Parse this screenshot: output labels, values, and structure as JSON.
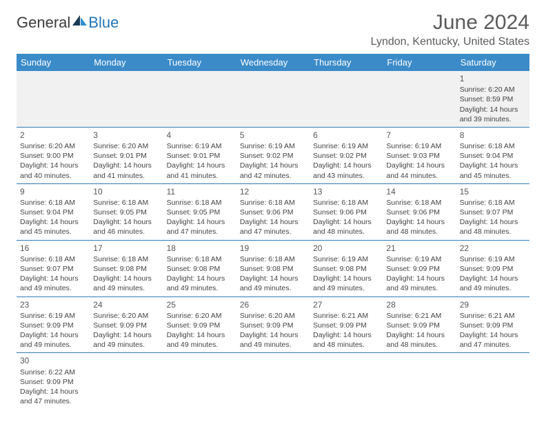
{
  "brand": {
    "part1": "General",
    "part2": "Blue"
  },
  "title": "June 2024",
  "location": "Lyndon, Kentucky, United States",
  "day_headers": [
    "Sunday",
    "Monday",
    "Tuesday",
    "Wednesday",
    "Thursday",
    "Friday",
    "Saturday"
  ],
  "colors": {
    "header_bg": "#3b8bc9",
    "header_fg": "#ffffff",
    "cell_border": "#2f7bb5",
    "empty_bg": "#f1f1f1",
    "text": "#444444",
    "title_color": "#5a5a5a",
    "logo_dark": "#3a3a3a",
    "logo_blue": "#2176b8"
  },
  "weeks": [
    [
      null,
      null,
      null,
      null,
      null,
      null,
      {
        "n": "1",
        "sr": "Sunrise: 6:20 AM",
        "ss": "Sunset: 8:59 PM",
        "d1": "Daylight: 14 hours",
        "d2": "and 39 minutes."
      }
    ],
    [
      {
        "n": "2",
        "sr": "Sunrise: 6:20 AM",
        "ss": "Sunset: 9:00 PM",
        "d1": "Daylight: 14 hours",
        "d2": "and 40 minutes."
      },
      {
        "n": "3",
        "sr": "Sunrise: 6:20 AM",
        "ss": "Sunset: 9:01 PM",
        "d1": "Daylight: 14 hours",
        "d2": "and 41 minutes."
      },
      {
        "n": "4",
        "sr": "Sunrise: 6:19 AM",
        "ss": "Sunset: 9:01 PM",
        "d1": "Daylight: 14 hours",
        "d2": "and 41 minutes."
      },
      {
        "n": "5",
        "sr": "Sunrise: 6:19 AM",
        "ss": "Sunset: 9:02 PM",
        "d1": "Daylight: 14 hours",
        "d2": "and 42 minutes."
      },
      {
        "n": "6",
        "sr": "Sunrise: 6:19 AM",
        "ss": "Sunset: 9:02 PM",
        "d1": "Daylight: 14 hours",
        "d2": "and 43 minutes."
      },
      {
        "n": "7",
        "sr": "Sunrise: 6:19 AM",
        "ss": "Sunset: 9:03 PM",
        "d1": "Daylight: 14 hours",
        "d2": "and 44 minutes."
      },
      {
        "n": "8",
        "sr": "Sunrise: 6:18 AM",
        "ss": "Sunset: 9:04 PM",
        "d1": "Daylight: 14 hours",
        "d2": "and 45 minutes."
      }
    ],
    [
      {
        "n": "9",
        "sr": "Sunrise: 6:18 AM",
        "ss": "Sunset: 9:04 PM",
        "d1": "Daylight: 14 hours",
        "d2": "and 45 minutes."
      },
      {
        "n": "10",
        "sr": "Sunrise: 6:18 AM",
        "ss": "Sunset: 9:05 PM",
        "d1": "Daylight: 14 hours",
        "d2": "and 46 minutes."
      },
      {
        "n": "11",
        "sr": "Sunrise: 6:18 AM",
        "ss": "Sunset: 9:05 PM",
        "d1": "Daylight: 14 hours",
        "d2": "and 47 minutes."
      },
      {
        "n": "12",
        "sr": "Sunrise: 6:18 AM",
        "ss": "Sunset: 9:06 PM",
        "d1": "Daylight: 14 hours",
        "d2": "and 47 minutes."
      },
      {
        "n": "13",
        "sr": "Sunrise: 6:18 AM",
        "ss": "Sunset: 9:06 PM",
        "d1": "Daylight: 14 hours",
        "d2": "and 48 minutes."
      },
      {
        "n": "14",
        "sr": "Sunrise: 6:18 AM",
        "ss": "Sunset: 9:06 PM",
        "d1": "Daylight: 14 hours",
        "d2": "and 48 minutes."
      },
      {
        "n": "15",
        "sr": "Sunrise: 6:18 AM",
        "ss": "Sunset: 9:07 PM",
        "d1": "Daylight: 14 hours",
        "d2": "and 48 minutes."
      }
    ],
    [
      {
        "n": "16",
        "sr": "Sunrise: 6:18 AM",
        "ss": "Sunset: 9:07 PM",
        "d1": "Daylight: 14 hours",
        "d2": "and 49 minutes."
      },
      {
        "n": "17",
        "sr": "Sunrise: 6:18 AM",
        "ss": "Sunset: 9:08 PM",
        "d1": "Daylight: 14 hours",
        "d2": "and 49 minutes."
      },
      {
        "n": "18",
        "sr": "Sunrise: 6:18 AM",
        "ss": "Sunset: 9:08 PM",
        "d1": "Daylight: 14 hours",
        "d2": "and 49 minutes."
      },
      {
        "n": "19",
        "sr": "Sunrise: 6:18 AM",
        "ss": "Sunset: 9:08 PM",
        "d1": "Daylight: 14 hours",
        "d2": "and 49 minutes."
      },
      {
        "n": "20",
        "sr": "Sunrise: 6:19 AM",
        "ss": "Sunset: 9:08 PM",
        "d1": "Daylight: 14 hours",
        "d2": "and 49 minutes."
      },
      {
        "n": "21",
        "sr": "Sunrise: 6:19 AM",
        "ss": "Sunset: 9:09 PM",
        "d1": "Daylight: 14 hours",
        "d2": "and 49 minutes."
      },
      {
        "n": "22",
        "sr": "Sunrise: 6:19 AM",
        "ss": "Sunset: 9:09 PM",
        "d1": "Daylight: 14 hours",
        "d2": "and 49 minutes."
      }
    ],
    [
      {
        "n": "23",
        "sr": "Sunrise: 6:19 AM",
        "ss": "Sunset: 9:09 PM",
        "d1": "Daylight: 14 hours",
        "d2": "and 49 minutes."
      },
      {
        "n": "24",
        "sr": "Sunrise: 6:20 AM",
        "ss": "Sunset: 9:09 PM",
        "d1": "Daylight: 14 hours",
        "d2": "and 49 minutes."
      },
      {
        "n": "25",
        "sr": "Sunrise: 6:20 AM",
        "ss": "Sunset: 9:09 PM",
        "d1": "Daylight: 14 hours",
        "d2": "and 49 minutes."
      },
      {
        "n": "26",
        "sr": "Sunrise: 6:20 AM",
        "ss": "Sunset: 9:09 PM",
        "d1": "Daylight: 14 hours",
        "d2": "and 49 minutes."
      },
      {
        "n": "27",
        "sr": "Sunrise: 6:21 AM",
        "ss": "Sunset: 9:09 PM",
        "d1": "Daylight: 14 hours",
        "d2": "and 48 minutes."
      },
      {
        "n": "28",
        "sr": "Sunrise: 6:21 AM",
        "ss": "Sunset: 9:09 PM",
        "d1": "Daylight: 14 hours",
        "d2": "and 48 minutes."
      },
      {
        "n": "29",
        "sr": "Sunrise: 6:21 AM",
        "ss": "Sunset: 9:09 PM",
        "d1": "Daylight: 14 hours",
        "d2": "and 47 minutes."
      }
    ],
    [
      {
        "n": "30",
        "sr": "Sunrise: 6:22 AM",
        "ss": "Sunset: 9:09 PM",
        "d1": "Daylight: 14 hours",
        "d2": "and 47 minutes."
      },
      null,
      null,
      null,
      null,
      null,
      null
    ]
  ]
}
